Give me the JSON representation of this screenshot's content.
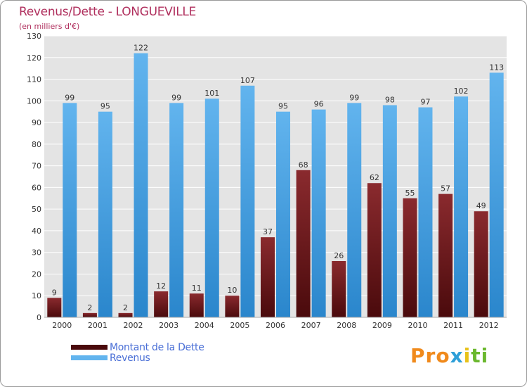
{
  "title": "Revenus/Dette - LONGUEVILLE",
  "subtitle": "(en milliers d'€)",
  "logo_text": "Proxiti",
  "colors": {
    "debt_top": "#8a2a2e",
    "debt_bottom": "#4a0a0c",
    "revenue_top": "#62b4ee",
    "revenue_bottom": "#2a86cc",
    "plot_bg": "#e4e4e4",
    "grid": "#ffffff",
    "axis_text": "#333333"
  },
  "chart_data": {
    "type": "bar",
    "categories": [
      "2000",
      "2001",
      "2002",
      "2003",
      "2004",
      "2005",
      "2006",
      "2007",
      "2008",
      "2009",
      "2010",
      "2011",
      "2012"
    ],
    "series": [
      {
        "name": "Montant de la Dette",
        "values": [
          9,
          2,
          2,
          12,
          11,
          10,
          37,
          68,
          26,
          62,
          55,
          57,
          49
        ]
      },
      {
        "name": "Revenus",
        "values": [
          99,
          95,
          122,
          99,
          101,
          107,
          95,
          96,
          99,
          98,
          97,
          102,
          113
        ]
      }
    ],
    "ylim": [
      0,
      130
    ],
    "yticks": [
      0,
      10,
      20,
      30,
      40,
      50,
      60,
      70,
      80,
      90,
      100,
      110,
      120,
      130
    ],
    "xlabel": "",
    "ylabel": "",
    "grid": true,
    "legend_position": "bottom-left"
  }
}
